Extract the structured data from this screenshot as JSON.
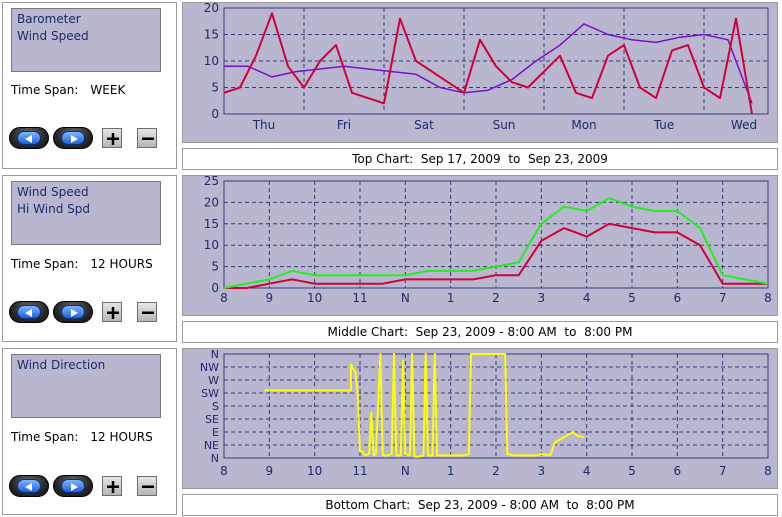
{
  "panels": [
    {
      "list_items": [
        "Barometer",
        "Wind Speed"
      ],
      "time_span_label": "Time Span:",
      "time_span_value": "WEEK",
      "caption": "Top Chart:  Sep 17, 2009  to  Sep 23, 2009"
    },
    {
      "list_items": [
        "Wind Speed",
        "Hi Wind Spd"
      ],
      "time_span_label": "Time Span:",
      "time_span_value": "12 HOURS",
      "caption": "Middle Chart:  Sep 23, 2009 - 8:00 AM  to  8:00 PM"
    },
    {
      "list_items": [
        "Wind Direction"
      ],
      "time_span_label": "Time Span:",
      "time_span_value": "12 HOURS",
      "caption": "Bottom Chart:  Sep 23, 2009 - 8:00 AM  to  8:00 PM"
    }
  ],
  "colors": {
    "plot_bg": "#b9b7cf",
    "grid": "#3a3a7a",
    "axis_text": "#1c2b6a",
    "wind_red": "#d0003a",
    "baro_purple": "#7a10c8",
    "hi_green": "#22ee22",
    "dir_yellow": "#ffff00"
  },
  "icons": [
    "back-arrow-icon",
    "forward-arrow-icon",
    "plus-icon",
    "minus-icon"
  ],
  "chart_data": [
    {
      "type": "line",
      "title": "",
      "ylim": [
        0,
        20
      ],
      "yticks": [
        "0",
        "5",
        "10",
        "15",
        "20"
      ],
      "categories": [
        "Thu",
        "Fri",
        "Sat",
        "Sun",
        "Mon",
        "Tue",
        "Wed"
      ],
      "series": [
        {
          "name": "Barometer",
          "x": [
            0,
            0.3,
            0.6,
            0.9,
            1.2,
            1.5,
            1.8,
            2.1,
            2.4,
            2.7,
            3.0,
            3.3,
            3.6,
            3.9,
            4.2,
            4.5,
            4.8,
            5.1,
            5.4,
            5.7,
            6.0,
            6.3,
            6.6
          ],
          "values": [
            9,
            9,
            7,
            8,
            8.5,
            9,
            8.5,
            8,
            7.5,
            5,
            4,
            4.5,
            6.5,
            10,
            13,
            17,
            15,
            14,
            13.5,
            14.5,
            15,
            14,
            2
          ]
        },
        {
          "name": "Wind Speed",
          "x": [
            0,
            0.2,
            0.4,
            0.6,
            0.8,
            1.0,
            1.2,
            1.4,
            1.6,
            1.8,
            2.0,
            2.2,
            2.4,
            2.6,
            2.8,
            3.0,
            3.2,
            3.4,
            3.6,
            3.8,
            4.0,
            4.2,
            4.4,
            4.6,
            4.8,
            5.0,
            5.2,
            5.4,
            5.6,
            5.8,
            6.0,
            6.2,
            6.4,
            6.6
          ],
          "values": [
            4,
            5,
            11,
            19,
            9,
            5,
            10,
            13,
            4,
            3,
            2,
            18,
            10,
            8,
            6,
            4,
            14,
            9,
            6,
            5,
            8,
            11,
            4,
            3,
            11,
            13,
            5,
            3,
            12,
            13,
            5,
            3,
            18,
            0
          ]
        }
      ]
    },
    {
      "type": "line",
      "title": "",
      "ylim": [
        0,
        25
      ],
      "yticks": [
        "0",
        "5",
        "10",
        "15",
        "20",
        "25"
      ],
      "categories": [
        "8",
        "9",
        "10",
        "11",
        "N",
        "1",
        "2",
        "3",
        "4",
        "5",
        "6",
        "7",
        "8"
      ],
      "series": [
        {
          "name": "Wind Speed",
          "x": [
            0,
            0.5,
            1,
            1.5,
            2,
            2.5,
            3,
            3.5,
            4,
            4.5,
            5,
            5.5,
            6,
            6.5,
            7,
            7.5,
            8,
            8.5,
            9,
            9.5,
            10,
            10.5,
            11,
            11.5,
            12
          ],
          "values": [
            0,
            0,
            1,
            2,
            1,
            1,
            1,
            1,
            2,
            2,
            2,
            2,
            3,
            3,
            11,
            14,
            12,
            15,
            14,
            13,
            13,
            10,
            1,
            1,
            1
          ]
        },
        {
          "name": "Hi Wind Spd",
          "x": [
            0,
            0.5,
            1,
            1.5,
            2,
            2.5,
            3,
            3.5,
            4,
            4.5,
            5,
            5.5,
            6,
            6.5,
            7,
            7.5,
            8,
            8.5,
            9,
            9.5,
            10,
            10.5,
            11,
            11.5,
            12
          ],
          "values": [
            0,
            1,
            2,
            4,
            3,
            3,
            3,
            3,
            3,
            4,
            4,
            4,
            5,
            6,
            15,
            19,
            18,
            21,
            19,
            18,
            18,
            14,
            3,
            2,
            1
          ]
        }
      ]
    },
    {
      "type": "line",
      "title": "",
      "ylim": [
        0,
        8
      ],
      "yticks": [
        "N",
        "NE",
        "E",
        "SE",
        "S",
        "SW",
        "W",
        "NW",
        "N"
      ],
      "categories": [
        "8",
        "9",
        "10",
        "11",
        "N",
        "1",
        "2",
        "3",
        "4",
        "5",
        "6",
        "7",
        "8"
      ],
      "series": [
        {
          "name": "Wind Direction",
          "x": [
            0.9,
            2.8,
            2.8,
            2.9,
            2.95,
            3.0,
            3.05,
            3.1,
            3.2,
            3.25,
            3.3,
            3.35,
            3.45,
            3.5,
            3.6,
            3.7,
            3.75,
            3.8,
            3.9,
            3.95,
            4.0,
            4.1,
            4.15,
            4.2,
            4.3,
            4.4,
            4.45,
            4.5,
            4.6,
            4.65,
            4.7,
            4.8,
            5.3,
            5.4,
            5.45,
            5.5,
            6.2,
            6.25,
            6.4,
            6.9,
            7.0,
            7.2,
            7.3,
            7.7,
            7.8,
            7.95
          ],
          "values": [
            5.2,
            5.2,
            7.2,
            6.6,
            5,
            0.5,
            0.5,
            0.2,
            0.3,
            3.5,
            0.2,
            0.3,
            8,
            0.2,
            0.2,
            0.3,
            8,
            0.2,
            0.2,
            7.5,
            0.3,
            0.2,
            8,
            0.1,
            0.1,
            0.2,
            8,
            0.2,
            0.2,
            8,
            0.2,
            0.2,
            0.2,
            0.3,
            8,
            8,
            8,
            0.3,
            0.2,
            0.2,
            0.3,
            0.2,
            1.2,
            2,
            1.7,
            1.6
          ]
        }
      ]
    }
  ]
}
